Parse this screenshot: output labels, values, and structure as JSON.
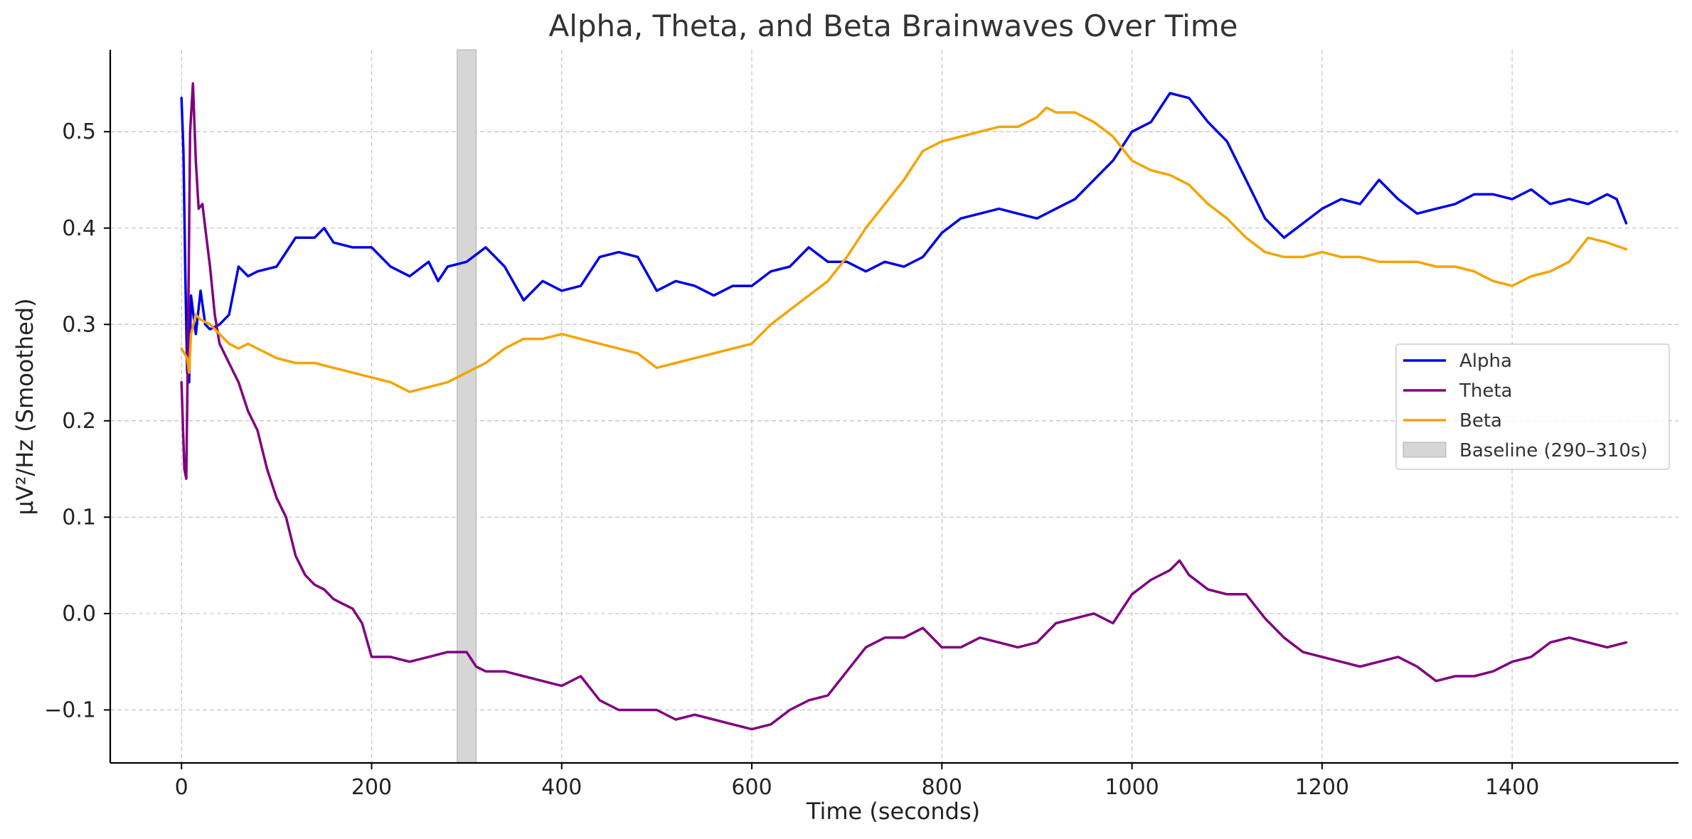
{
  "chart_data": {
    "type": "line",
    "title": "Alpha, Theta, and Beta Brainwaves Over Time",
    "xlabel": "Time (seconds)",
    "ylabel": "µV²/Hz (Smoothed)",
    "xlim": [
      -75,
      1575
    ],
    "ylim": [
      -0.155,
      0.585
    ],
    "xticks": [
      0,
      200,
      400,
      600,
      800,
      1000,
      1200,
      1400
    ],
    "xtick_labels": [
      "0",
      "200",
      "400",
      "600",
      "800",
      "1000",
      "1200",
      "1400"
    ],
    "yticks": [
      -0.1,
      0.0,
      0.1,
      0.2,
      0.3,
      0.4,
      0.5
    ],
    "ytick_labels": [
      "−0.1",
      "0.0",
      "0.1",
      "0.2",
      "0.3",
      "0.4",
      "0.5"
    ],
    "grid": true,
    "legend_position": "center-right",
    "baseline_band": {
      "name": "Baseline (290–310s)",
      "x0": 290,
      "x1": 310,
      "color": "#d6d6d6"
    },
    "series": [
      {
        "name": "Alpha",
        "color": "#0000e6",
        "x": [
          0,
          2,
          4,
          6,
          8,
          10,
          15,
          20,
          25,
          30,
          40,
          50,
          60,
          70,
          80,
          100,
          120,
          140,
          150,
          160,
          180,
          200,
          220,
          240,
          260,
          270,
          280,
          300,
          320,
          340,
          360,
          380,
          400,
          420,
          440,
          460,
          480,
          500,
          520,
          540,
          560,
          580,
          600,
          620,
          640,
          660,
          680,
          700,
          720,
          740,
          760,
          780,
          800,
          820,
          840,
          860,
          880,
          900,
          920,
          940,
          960,
          980,
          1000,
          1020,
          1040,
          1060,
          1080,
          1100,
          1120,
          1140,
          1160,
          1180,
          1200,
          1220,
          1240,
          1260,
          1280,
          1300,
          1320,
          1340,
          1360,
          1380,
          1400,
          1420,
          1440,
          1460,
          1480,
          1500,
          1510,
          1520
        ],
        "values": [
          0.535,
          0.48,
          0.35,
          0.25,
          0.24,
          0.33,
          0.29,
          0.335,
          0.3,
          0.295,
          0.3,
          0.31,
          0.36,
          0.35,
          0.355,
          0.36,
          0.39,
          0.39,
          0.4,
          0.385,
          0.38,
          0.38,
          0.36,
          0.35,
          0.365,
          0.345,
          0.36,
          0.365,
          0.38,
          0.36,
          0.325,
          0.345,
          0.335,
          0.34,
          0.37,
          0.375,
          0.37,
          0.335,
          0.345,
          0.34,
          0.33,
          0.34,
          0.34,
          0.355,
          0.36,
          0.38,
          0.365,
          0.365,
          0.355,
          0.365,
          0.36,
          0.37,
          0.395,
          0.41,
          0.415,
          0.42,
          0.415,
          0.41,
          0.42,
          0.43,
          0.45,
          0.47,
          0.5,
          0.51,
          0.54,
          0.535,
          0.51,
          0.49,
          0.45,
          0.41,
          0.39,
          0.405,
          0.42,
          0.43,
          0.425,
          0.45,
          0.43,
          0.415,
          0.42,
          0.425,
          0.435,
          0.435,
          0.43,
          0.44,
          0.425,
          0.43,
          0.425,
          0.435,
          0.43,
          0.405
        ]
      },
      {
        "name": "Theta",
        "color": "#800080",
        "x": [
          0,
          3,
          5,
          7,
          9,
          12,
          15,
          18,
          22,
          25,
          30,
          35,
          40,
          50,
          60,
          70,
          80,
          90,
          100,
          110,
          120,
          130,
          140,
          150,
          160,
          170,
          180,
          190,
          200,
          220,
          240,
          260,
          280,
          300,
          310,
          320,
          340,
          360,
          380,
          400,
          420,
          440,
          460,
          480,
          500,
          520,
          540,
          560,
          580,
          600,
          620,
          640,
          660,
          680,
          700,
          720,
          740,
          760,
          780,
          800,
          820,
          840,
          860,
          880,
          900,
          920,
          940,
          960,
          980,
          1000,
          1020,
          1040,
          1050,
          1060,
          1080,
          1100,
          1120,
          1140,
          1160,
          1180,
          1200,
          1220,
          1240,
          1260,
          1280,
          1300,
          1320,
          1340,
          1360,
          1380,
          1400,
          1420,
          1440,
          1460,
          1480,
          1500,
          1520
        ],
        "values": [
          0.24,
          0.15,
          0.14,
          0.3,
          0.5,
          0.55,
          0.47,
          0.42,
          0.425,
          0.4,
          0.36,
          0.31,
          0.28,
          0.26,
          0.24,
          0.21,
          0.19,
          0.15,
          0.12,
          0.1,
          0.06,
          0.04,
          0.03,
          0.025,
          0.015,
          0.01,
          0.005,
          -0.01,
          -0.045,
          -0.045,
          -0.05,
          -0.045,
          -0.04,
          -0.04,
          -0.055,
          -0.06,
          -0.06,
          -0.065,
          -0.07,
          -0.075,
          -0.065,
          -0.09,
          -0.1,
          -0.1,
          -0.1,
          -0.11,
          -0.105,
          -0.11,
          -0.115,
          -0.12,
          -0.115,
          -0.1,
          -0.09,
          -0.085,
          -0.06,
          -0.035,
          -0.025,
          -0.025,
          -0.015,
          -0.035,
          -0.035,
          -0.025,
          -0.03,
          -0.035,
          -0.03,
          -0.01,
          -0.005,
          0.0,
          -0.01,
          0.02,
          0.035,
          0.045,
          0.055,
          0.04,
          0.025,
          0.02,
          0.02,
          -0.005,
          -0.025,
          -0.04,
          -0.045,
          -0.05,
          -0.055,
          -0.05,
          -0.045,
          -0.055,
          -0.07,
          -0.065,
          -0.065,
          -0.06,
          -0.05,
          -0.045,
          -0.03,
          -0.025,
          -0.03,
          -0.035,
          -0.03
        ]
      },
      {
        "name": "Beta",
        "color": "#f5a300",
        "x": [
          0,
          3,
          6,
          8,
          10,
          15,
          20,
          30,
          40,
          50,
          60,
          70,
          80,
          100,
          120,
          140,
          160,
          180,
          200,
          220,
          240,
          260,
          280,
          300,
          320,
          340,
          360,
          380,
          400,
          420,
          440,
          460,
          480,
          500,
          520,
          540,
          560,
          580,
          600,
          620,
          640,
          660,
          680,
          700,
          720,
          740,
          760,
          780,
          800,
          820,
          840,
          860,
          880,
          900,
          910,
          920,
          940,
          960,
          980,
          1000,
          1020,
          1040,
          1060,
          1080,
          1100,
          1120,
          1140,
          1160,
          1180,
          1200,
          1220,
          1240,
          1260,
          1280,
          1300,
          1320,
          1340,
          1360,
          1380,
          1400,
          1420,
          1440,
          1460,
          1480,
          1500,
          1520
        ],
        "values": [
          0.275,
          0.27,
          0.265,
          0.25,
          0.29,
          0.31,
          0.305,
          0.3,
          0.29,
          0.28,
          0.275,
          0.28,
          0.275,
          0.265,
          0.26,
          0.26,
          0.255,
          0.25,
          0.245,
          0.24,
          0.23,
          0.235,
          0.24,
          0.25,
          0.26,
          0.275,
          0.285,
          0.285,
          0.29,
          0.285,
          0.28,
          0.275,
          0.27,
          0.255,
          0.26,
          0.265,
          0.27,
          0.275,
          0.28,
          0.3,
          0.315,
          0.33,
          0.345,
          0.37,
          0.4,
          0.425,
          0.45,
          0.48,
          0.49,
          0.495,
          0.5,
          0.505,
          0.505,
          0.515,
          0.525,
          0.52,
          0.52,
          0.51,
          0.495,
          0.47,
          0.46,
          0.455,
          0.445,
          0.425,
          0.41,
          0.39,
          0.375,
          0.37,
          0.37,
          0.375,
          0.37,
          0.37,
          0.365,
          0.365,
          0.365,
          0.36,
          0.36,
          0.355,
          0.345,
          0.34,
          0.35,
          0.355,
          0.365,
          0.39,
          0.385,
          0.378
        ]
      }
    ]
  }
}
